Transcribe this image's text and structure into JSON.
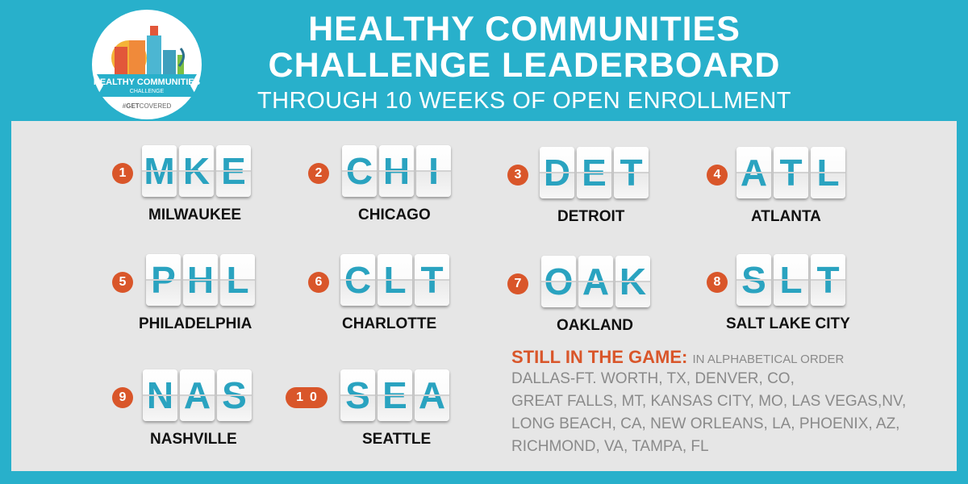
{
  "header": {
    "title_line1": "HEALTHY COMMUNITIES",
    "title_line2": "CHALLENGE LEADERBOARD",
    "subtitle": "THROUGH 10 WEEKS OF OPEN ENROLLMENT"
  },
  "logo": {
    "ribbon_text": "HEALTHY COMMUNITIES",
    "ribbon_sub": "CHALLENGE",
    "hashtag_prefix": "#",
    "hashtag_bold": "GET",
    "hashtag_rest": "COVERED"
  },
  "leaders": [
    {
      "rank": "1",
      "letters": [
        "M",
        "K",
        "E"
      ],
      "name": "MILWAUKEE"
    },
    {
      "rank": "2",
      "letters": [
        "C",
        "H",
        "I"
      ],
      "name": "CHICAGO"
    },
    {
      "rank": "3",
      "letters": [
        "D",
        "E",
        "T"
      ],
      "name": "DETROIT"
    },
    {
      "rank": "4",
      "letters": [
        "A",
        "T",
        "L"
      ],
      "name": "ATLANTA"
    },
    {
      "rank": "5",
      "letters": [
        "P",
        "H",
        "L"
      ],
      "name": "PHILADELPHIA"
    },
    {
      "rank": "6",
      "letters": [
        "C",
        "L",
        "T"
      ],
      "name": "CHARLOTTE"
    },
    {
      "rank": "7",
      "letters": [
        "O",
        "A",
        "K"
      ],
      "name": "OAKLAND"
    },
    {
      "rank": "8",
      "letters": [
        "S",
        "L",
        "T"
      ],
      "name": "SALT LAKE CITY"
    },
    {
      "rank": "9",
      "letters": [
        "N",
        "A",
        "S"
      ],
      "name": "NASHVILLE"
    },
    {
      "rank": "10",
      "letters": [
        "S",
        "E",
        "A"
      ],
      "name": "SEATTLE"
    }
  ],
  "still_in_game": {
    "heading": "STILL IN THE GAME:",
    "note": "IN ALPHABETICAL ORDER",
    "lines": [
      "DALLAS-FT. WORTH, TX,  DENVER, CO,",
      "GREAT FALLS, MT, KANSAS CITY, MO, LAS VEGAS,NV,",
      "LONG BEACH, CA, NEW ORLEANS, LA, PHOENIX, AZ,",
      "RICHMOND, VA, TAMPA, FL"
    ]
  },
  "colors": {
    "background": "#28b0cb",
    "panel": "#e6e6e6",
    "accent_orange": "#d9562a",
    "tile_letter": "#2aa3c0"
  }
}
